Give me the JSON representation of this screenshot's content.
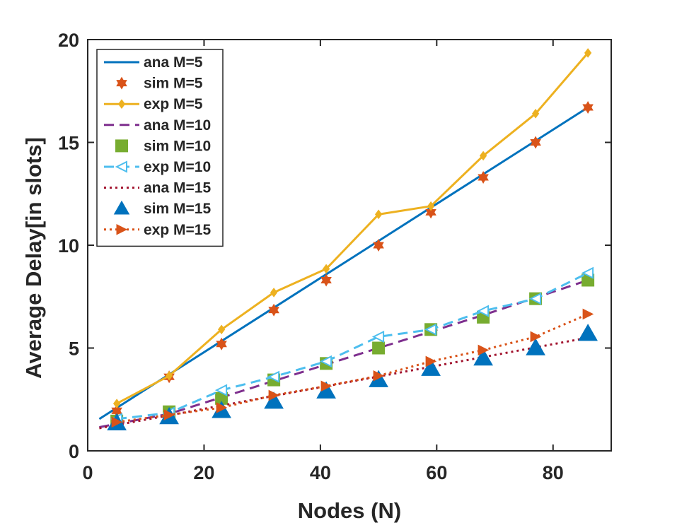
{
  "chart_data": {
    "type": "line",
    "title": "",
    "xlabel": "Nodes (N)",
    "ylabel": "Average Delay[in slots]",
    "xlim": [
      0,
      90
    ],
    "ylim": [
      0,
      20
    ],
    "xticks": [
      0,
      20,
      40,
      60,
      80
    ],
    "yticks": [
      0,
      5,
      10,
      15,
      20
    ],
    "grid": false,
    "legend_position": "top-left",
    "series": [
      {
        "name": "ana M=5",
        "style": "solid",
        "marker": "none",
        "color": "#0072BD",
        "x": [
          2,
          86
        ],
        "y": [
          1.55,
          16.7
        ]
      },
      {
        "name": "sim M=5",
        "style": "none",
        "marker": "hexagram",
        "color": "#D95319",
        "x": [
          5,
          14,
          23,
          32,
          41,
          50,
          59,
          68,
          77,
          86
        ],
        "y": [
          1.95,
          3.6,
          5.2,
          6.85,
          8.3,
          10.0,
          11.6,
          13.3,
          15.0,
          16.7
        ]
      },
      {
        "name": "exp M=5",
        "style": "solid",
        "marker": "diamond",
        "color": "#EDB120",
        "x": [
          5,
          14,
          23,
          32,
          41,
          50,
          59,
          68,
          77,
          86
        ],
        "y": [
          2.3,
          3.65,
          5.9,
          7.7,
          8.85,
          11.5,
          11.9,
          14.35,
          16.4,
          19.35
        ]
      },
      {
        "name": "ana M=10",
        "style": "dashed",
        "marker": "none",
        "color": "#7E2F8E",
        "x": [
          2,
          14,
          32,
          50,
          68,
          86
        ],
        "y": [
          1.15,
          1.8,
          3.4,
          5.0,
          6.6,
          8.3
        ]
      },
      {
        "name": "sim M=10",
        "style": "none",
        "marker": "square",
        "color": "#77AC30",
        "x": [
          5,
          14,
          23,
          32,
          41,
          50,
          59,
          68,
          77,
          86
        ],
        "y": [
          1.45,
          1.9,
          2.55,
          3.45,
          4.25,
          5.0,
          5.9,
          6.5,
          7.4,
          8.3
        ]
      },
      {
        "name": "exp M=10",
        "style": "dashed",
        "marker": "triangle-left",
        "color": "#4DBEEE",
        "x": [
          5,
          14,
          23,
          32,
          41,
          50,
          59,
          68,
          77,
          86
        ],
        "y": [
          1.55,
          1.85,
          2.95,
          3.6,
          4.35,
          5.55,
          5.9,
          6.8,
          7.4,
          8.65
        ]
      },
      {
        "name": "ana M=15",
        "style": "dotted",
        "marker": "none",
        "color": "#A2142F",
        "x": [
          2,
          86
        ],
        "y": [
          1.1,
          5.5
        ]
      },
      {
        "name": "sim M=15",
        "style": "none",
        "marker": "triangle-up",
        "color": "#0072BD",
        "x": [
          5,
          14,
          23,
          32,
          41,
          50,
          59,
          68,
          77,
          86
        ],
        "y": [
          1.35,
          1.65,
          1.95,
          2.4,
          2.9,
          3.45,
          4.0,
          4.5,
          5.0,
          5.7
        ]
      },
      {
        "name": "exp M=15",
        "style": "dotted",
        "marker": "triangle-right",
        "color": "#D95319",
        "x": [
          5,
          14,
          23,
          32,
          41,
          50,
          59,
          68,
          77,
          86
        ],
        "y": [
          1.4,
          1.75,
          2.1,
          2.7,
          3.15,
          3.65,
          4.35,
          4.9,
          5.55,
          6.65
        ]
      }
    ]
  }
}
